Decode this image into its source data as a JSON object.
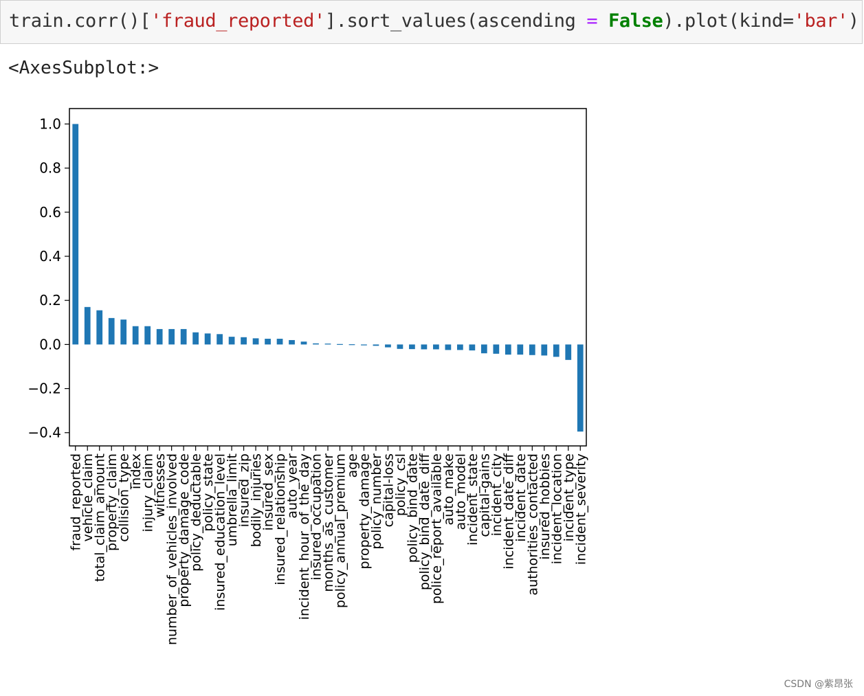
{
  "code_cell": {
    "receiver": "train.corr()[",
    "column": "'fraud_reported'",
    "sort_call": "].sort_values(ascending ",
    "equals": "=",
    "bool_value": "False",
    "plot_call": ").plot(kind=",
    "kind_value": "'bar'",
    "close": ")"
  },
  "output_repr": "<AxesSubplot:>",
  "watermark": "CSDN @紫昂张",
  "colors": {
    "bar": "#1f77b4",
    "axis": "#000000"
  },
  "chart_data": {
    "type": "bar",
    "categories": [
      "fraud_reported",
      "vehicle_claim",
      "total_claim_amount",
      "property_claim",
      "collision_type",
      "index",
      "injury_claim",
      "witnesses",
      "number_of_vehicles_involved",
      "property_damage_code",
      "policy_deductable",
      "policy_state",
      "insured_education_level",
      "umbrella_limit",
      "insured_zip",
      "bodily_injuries",
      "insured_sex",
      "insured_relationship",
      "auto_year",
      "incident_hour_of_the_day",
      "insured_occupation",
      "months_as_customer",
      "policy_annual_premium",
      "age",
      "property_damage",
      "policy_number",
      "capital-loss",
      "policy_csl",
      "policy_bind_date",
      "policy_bind_date_diff",
      "police_report_available",
      "auto_make",
      "auto_model",
      "incident_state",
      "capital-gains",
      "incident_city",
      "incident_date_diff",
      "incident_date",
      "authorities_contacted",
      "insured_hobbies",
      "incident_location",
      "incident_type",
      "incident_severity"
    ],
    "values": [
      1.0,
      0.17,
      0.155,
      0.12,
      0.113,
      0.083,
      0.083,
      0.07,
      0.07,
      0.07,
      0.055,
      0.05,
      0.047,
      0.035,
      0.033,
      0.028,
      0.026,
      0.026,
      0.02,
      0.013,
      0.005,
      0.004,
      0.002,
      0.001,
      -0.004,
      -0.006,
      -0.013,
      -0.02,
      -0.021,
      -0.022,
      -0.022,
      -0.025,
      -0.025,
      -0.027,
      -0.04,
      -0.042,
      -0.046,
      -0.046,
      -0.048,
      -0.05,
      -0.056,
      -0.07,
      -0.395
    ],
    "yticks": [
      "1.0",
      "0.8",
      "0.6",
      "0.4",
      "0.2",
      "0.0",
      "−0.2",
      "−0.4"
    ],
    "ytick_values": [
      1.0,
      0.8,
      0.6,
      0.4,
      0.2,
      0.0,
      -0.2,
      -0.4
    ],
    "ylim": [
      -0.46,
      1.07
    ],
    "title": "",
    "xlabel": "",
    "ylabel": "",
    "grid": false,
    "legend": "none"
  }
}
